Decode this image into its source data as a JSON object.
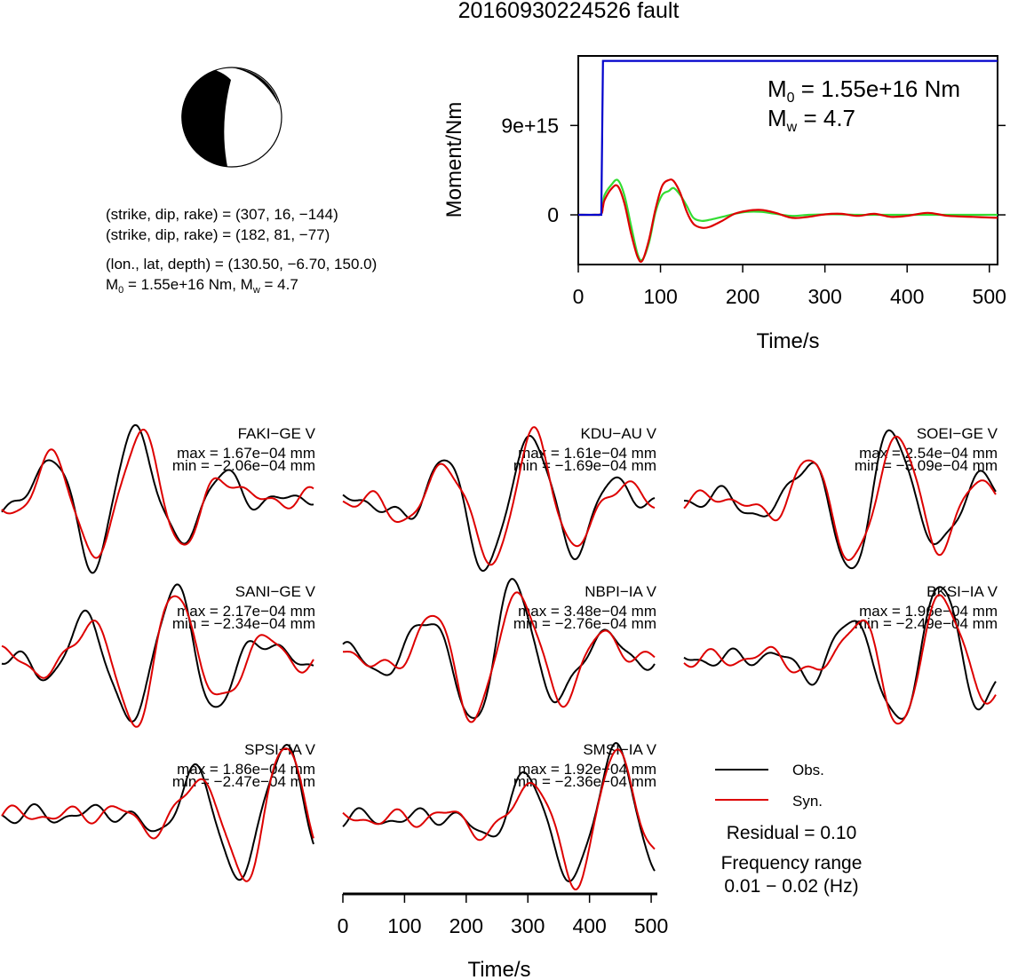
{
  "title": "20160930224526 fault",
  "focal": {
    "line1": "(strike, dip, rake) = (307, 16, −144)",
    "line2": "(strike, dip, rake) = (182, 81, −77)",
    "line3": "(lon., lat, depth) = (130.50, −6.70, 150.0)",
    "line4_pre": "M",
    "line4_sub": "0",
    "line4_mid": " = 1.55e+16 Nm, M",
    "line4_sub2": "w",
    "line4_post": " = 4.7"
  },
  "moment_panel": {
    "ylabel": "Moment/Nm",
    "xlabel": "Time/s",
    "m0_pre": "M",
    "m0_sub": "0",
    "m0_post": " = 1.55e+16 Nm",
    "mw_pre": "M",
    "mw_sub": "w",
    "mw_post": " = 4.7",
    "xticks": [
      "0",
      "100",
      "200",
      "300",
      "400",
      "500"
    ],
    "yticks": [
      "0",
      "9e+15"
    ],
    "colors": {
      "cumulative": "#0000cc",
      "rate_syn": "#dd0000",
      "rate_ref": "#33dd33"
    }
  },
  "waveforms": {
    "xlabel": "Time/s",
    "xticks": [
      "0",
      "100",
      "200",
      "300",
      "400",
      "500"
    ],
    "stations": [
      {
        "name": "FAKI−GE V",
        "max": "max = 1.67e−04 mm",
        "min": "min = −2.06e−04 mm"
      },
      {
        "name": "KDU−AU V",
        "max": "max = 1.61e−04 mm",
        "min": "min = −1.69e−04 mm"
      },
      {
        "name": "SOEI−GE V",
        "max": "max = 2.54e−04 mm",
        "min": "min = −3.09e−04 mm"
      },
      {
        "name": "SANI−GE V",
        "max": "max = 2.17e−04 mm",
        "min": "min = −2.34e−04 mm"
      },
      {
        "name": "NBPI−IA V",
        "max": "max = 3.48e−04 mm",
        "min": "min = −2.76e−04 mm"
      },
      {
        "name": "BKSI−IA V",
        "max": "max = 1.96e−04 mm",
        "min": "min = −2.49e−04 mm"
      },
      {
        "name": "SPSI−IA V",
        "max": "max = 1.86e−04 mm",
        "min": "min = −2.47e−04 mm"
      },
      {
        "name": "SMSI−IA V",
        "max": "max = 1.92e−04 mm",
        "min": "min = −2.36e−04 mm"
      }
    ],
    "colors": {
      "obs": "#000000",
      "syn": "#dd0000"
    }
  },
  "legend": {
    "obs": "Obs.",
    "syn": "Syn."
  },
  "residual": "Residual = 0.10",
  "freq_label": "Frequency range",
  "freq_value": "0.01 − 0.02 (Hz)",
  "chart_data": [
    {
      "type": "line",
      "title": "",
      "xlabel": "Time/s",
      "ylabel": "Moment/Nm",
      "xlim": [
        0,
        510
      ],
      "ylim": [
        -5000000000000000.0,
        1.6e+16
      ],
      "x": [
        0,
        20,
        28,
        30,
        32,
        40,
        48,
        56,
        64,
        72,
        78,
        86,
        94,
        102,
        110,
        116,
        124,
        132,
        140,
        150,
        160,
        175,
        190,
        205,
        222,
        240,
        260,
        280,
        300,
        320,
        340,
        360,
        380,
        400,
        425,
        450,
        480,
        510
      ],
      "series": [
        {
          "name": "cumulative",
          "values": [
            0,
            0,
            0,
            1.55e+16,
            1.55e+16,
            1.55e+16,
            1.55e+16,
            1.55e+16,
            1.55e+16,
            1.55e+16,
            1.55e+16,
            1.55e+16,
            1.55e+16,
            1.55e+16,
            1.55e+16,
            1.55e+16,
            1.55e+16,
            1.55e+16,
            1.55e+16,
            1.55e+16,
            1.55e+16,
            1.55e+16,
            1.55e+16,
            1.55e+16,
            1.55e+16,
            1.55e+16,
            1.55e+16,
            1.55e+16,
            1.55e+16,
            1.55e+16,
            1.55e+16,
            1.55e+16,
            1.55e+16,
            1.55e+16,
            1.55e+16,
            1.55e+16,
            1.55e+16,
            1.55e+16
          ]
        },
        {
          "name": "rate_syn",
          "values": [
            0,
            0,
            100000000000000.0,
            800000000000000.0,
            1500000000000000.0,
            2600000000000000.0,
            2900000000000000.0,
            1200000000000000.0,
            -1800000000000000.0,
            -4200000000000000.0,
            -4600000000000000.0,
            -2500000000000000.0,
            600000000000000.0,
            2900000000000000.0,
            3500000000000000.0,
            3400000000000000.0,
            2200000000000000.0,
            300000000000000.0,
            -900000000000000.0,
            -1300000000000000.0,
            -1200000000000000.0,
            -600000000000000.0,
            100000000000000.0,
            400000000000000.0,
            500000000000000.0,
            200000000000000.0,
            -300000000000000.0,
            -200000000000000.0,
            50000000000000.0,
            100000000000000.0,
            -100000000000000.0,
            100000000000000.0,
            -200000000000000.0,
            -100000000000000.0,
            200000000000000.0,
            -100000000000000.0,
            -200000000000000.0,
            -300000000000000.0
          ]
        },
        {
          "name": "rate_ref",
          "values": [
            0,
            0,
            100000000000000.0,
            1000000000000000.0,
            2000000000000000.0,
            3000000000000000.0,
            3500000000000000.0,
            2000000000000000.0,
            -1000000000000000.0,
            -3900000000000000.0,
            -4500000000000000.0,
            -2800000000000000.0,
            300000000000000.0,
            2000000000000000.0,
            2400000000000000.0,
            2700000000000000.0,
            2000000000000000.0,
            900000000000000.0,
            -300000000000000.0,
            -600000000000000.0,
            -500000000000000.0,
            -200000000000000.0,
            100000000000000.0,
            300000000000000.0,
            300000000000000.0,
            100000000000000.0,
            -100000000000000.0,
            0,
            50000000000000.0,
            50000000000000.0,
            0,
            0,
            0,
            0,
            0,
            0,
            0,
            0
          ]
        }
      ]
    }
  ]
}
